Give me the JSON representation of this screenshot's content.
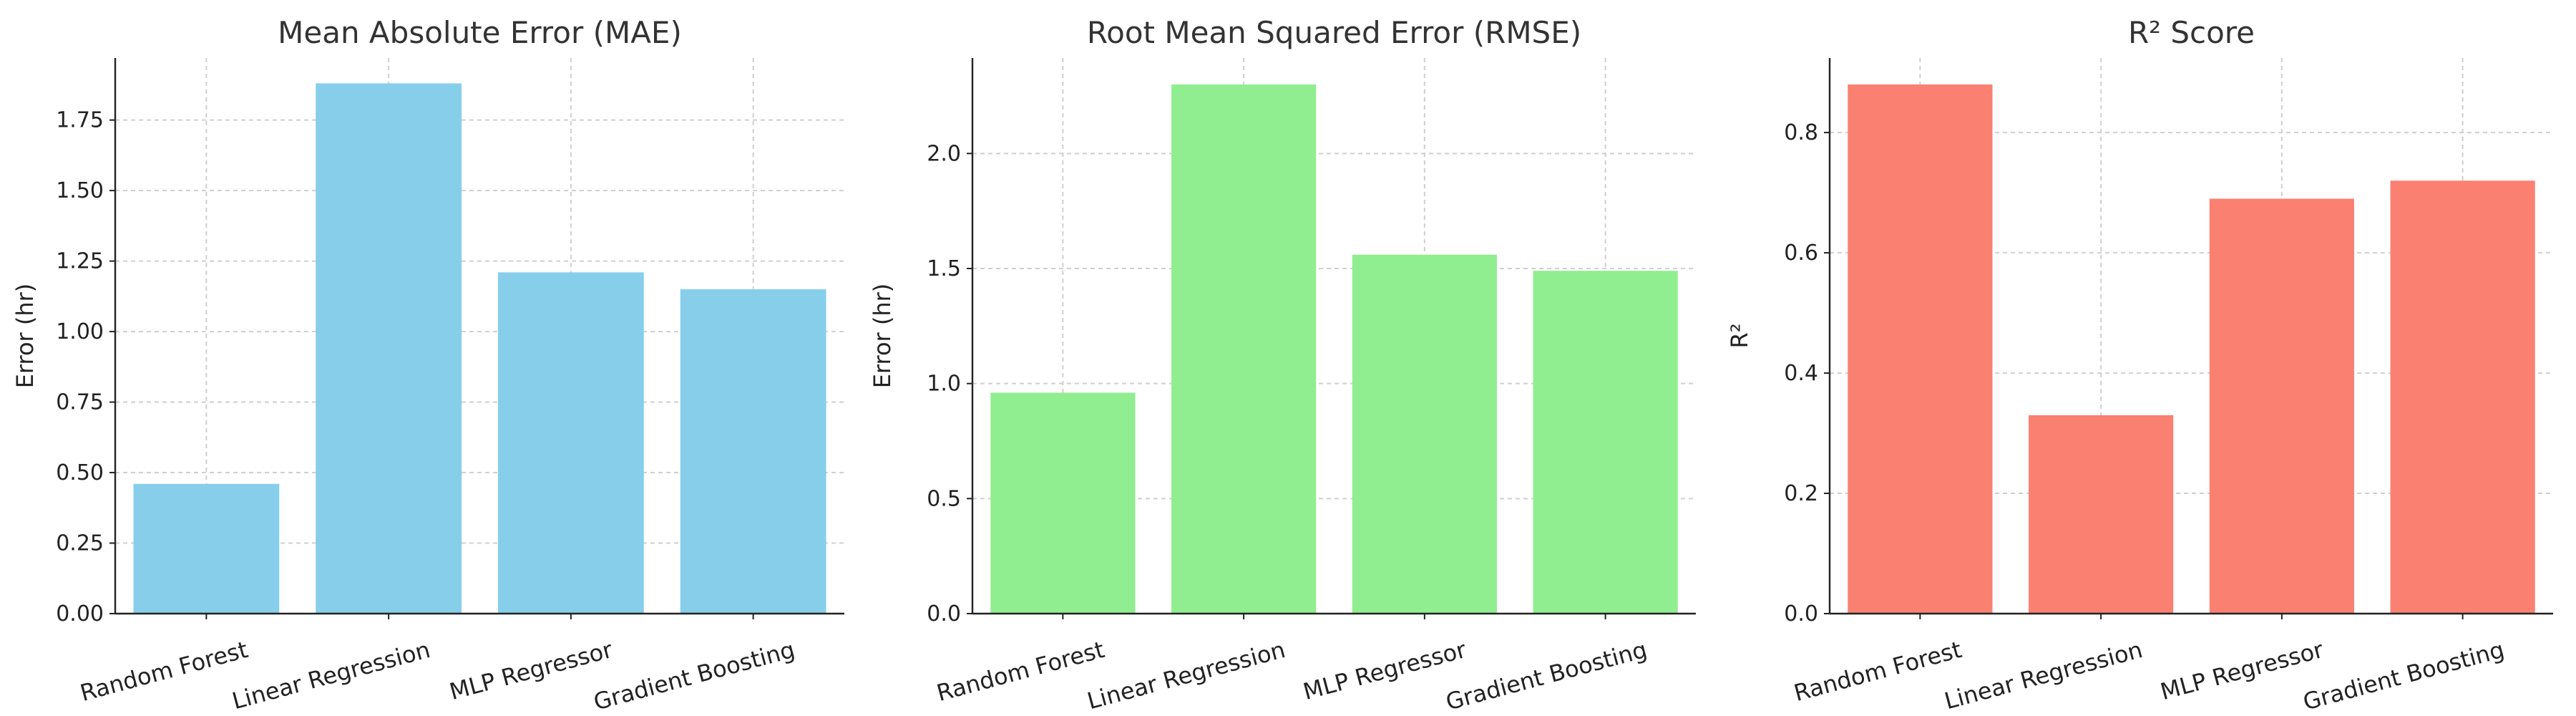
{
  "chart_data": [
    {
      "type": "bar",
      "title": "Mean Absolute Error (MAE)",
      "xlabel": "",
      "ylabel": "Error (hr)",
      "categories": [
        "Random Forest",
        "Linear Regression",
        "MLP Regressor",
        "Gradient Boosting"
      ],
      "values": [
        0.46,
        1.88,
        1.21,
        1.15
      ],
      "ylim": [
        0,
        1.97
      ],
      "yticks": [
        0.0,
        0.25,
        0.5,
        0.75,
        1.0,
        1.25,
        1.5,
        1.75
      ],
      "ytick_labels": [
        "0.00",
        "0.25",
        "0.50",
        "0.75",
        "1.00",
        "1.25",
        "1.50",
        "1.75"
      ],
      "color": "#87CEEB",
      "grid": true
    },
    {
      "type": "bar",
      "title": "Root Mean Squared Error (RMSE)",
      "xlabel": "",
      "ylabel": "Error (hr)",
      "categories": [
        "Random Forest",
        "Linear Regression",
        "MLP Regressor",
        "Gradient Boosting"
      ],
      "values": [
        0.96,
        2.3,
        1.56,
        1.49
      ],
      "ylim": [
        0,
        2.415
      ],
      "yticks": [
        0.0,
        0.5,
        1.0,
        1.5,
        2.0
      ],
      "ytick_labels": [
        "0.0",
        "0.5",
        "1.0",
        "1.5",
        "2.0"
      ],
      "color": "#90EE90",
      "grid": true
    },
    {
      "type": "bar",
      "title": "R² Score",
      "xlabel": "",
      "ylabel": "R²",
      "categories": [
        "Random Forest",
        "Linear Regression",
        "MLP Regressor",
        "Gradient Boosting"
      ],
      "values": [
        0.88,
        0.33,
        0.69,
        0.72
      ],
      "ylim": [
        0,
        0.924
      ],
      "yticks": [
        0.0,
        0.2,
        0.4,
        0.6,
        0.8
      ],
      "ytick_labels": [
        "0.0",
        "0.2",
        "0.4",
        "0.6",
        "0.8"
      ],
      "color": "#FA8072",
      "grid": true
    }
  ]
}
